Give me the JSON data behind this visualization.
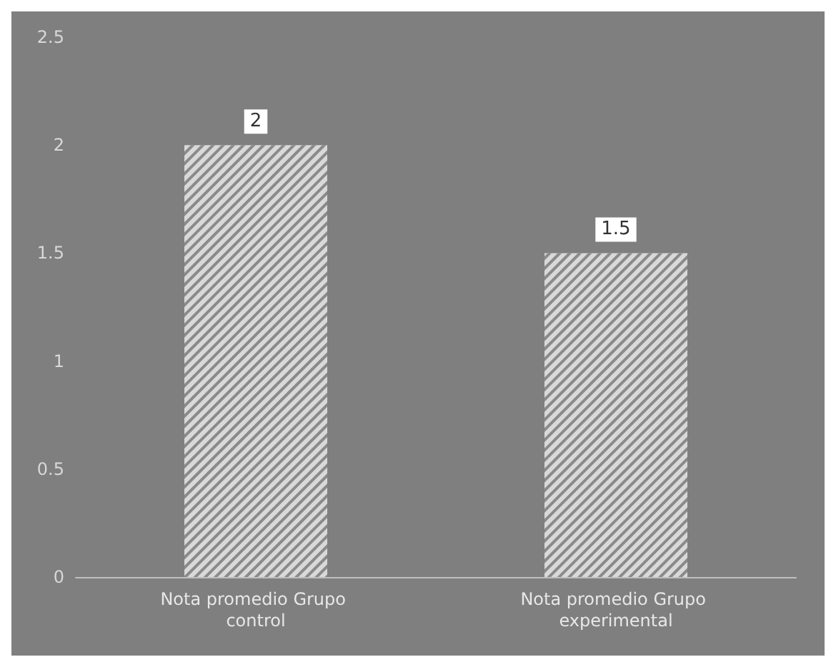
{
  "chart_data": {
    "type": "bar",
    "categories": [
      "Nota promedio Grupo control",
      "Nota promedio Grupo experimental"
    ],
    "values": [
      2,
      1.5
    ],
    "color": "#d9d9d9",
    "ylim": [
      0,
      2.5
    ],
    "yticks": [
      0,
      0.5,
      1,
      1.5,
      2,
      2.5
    ],
    "grid": false,
    "data_labels": true
  }
}
